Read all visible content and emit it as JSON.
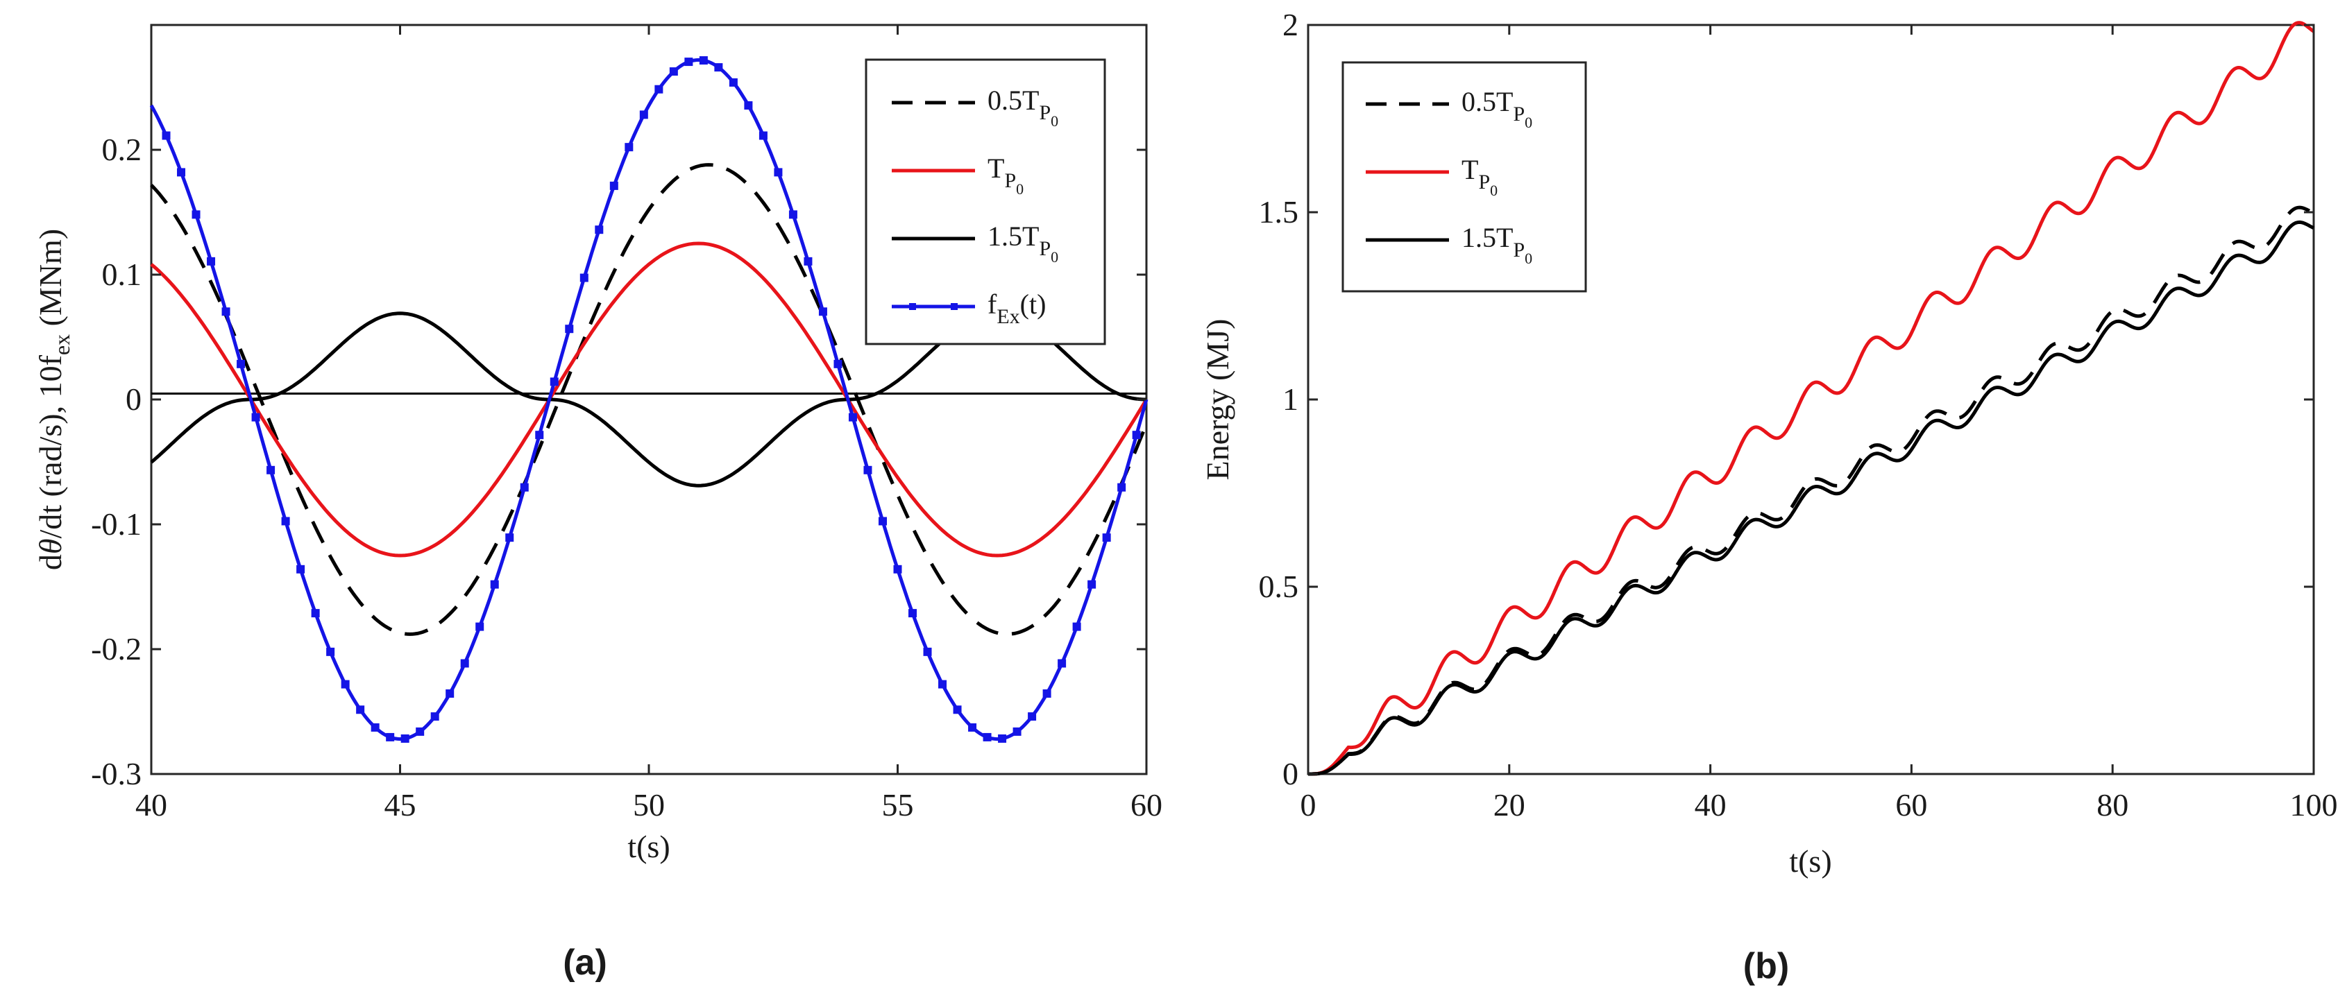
{
  "colors": {
    "red": "#e8141a",
    "black": "#000000",
    "blue": "#1414e6",
    "axis": "#262626"
  },
  "chart_data": [
    {
      "panel": "(a)",
      "type": "line",
      "title": "",
      "xlabel": "t(s)",
      "ylabel": {
        "prefix": "d",
        "theta": "θ",
        "rest": "/dt (rad/s), 10f",
        "sub": "ex",
        "unit": " (MNm)"
      },
      "xlim": [
        40,
        60
      ],
      "ylim": [
        -0.3,
        0.3
      ],
      "xticks": [
        40,
        45,
        50,
        55,
        60
      ],
      "xtick_labels": [
        "40",
        "45",
        "50",
        "55",
        "60"
      ],
      "yticks": [
        -0.3,
        -0.2,
        -0.1,
        0,
        0.1,
        0.2
      ],
      "ytick_labels": [
        "-0.3",
        "-0.2",
        "-0.1",
        "0",
        "0.1",
        "0.2"
      ],
      "grid": false,
      "legend_position": "top-right",
      "zero_line": true,
      "series": [
        {
          "name": "0.5T_P0",
          "legend": {
            "pre": "0.5T",
            "sub": "P",
            "subsub": "0",
            "post": ""
          },
          "style": "dashed",
          "color": "#000000",
          "amplitude": 0.188,
          "period": 12,
          "phase_zero": 42.2,
          "shape": "sine"
        },
        {
          "name": "T_P0",
          "legend": {
            "pre": "T",
            "sub": "P",
            "subsub": "0",
            "post": ""
          },
          "style": "solid",
          "color": "#e8141a",
          "amplitude": 0.125,
          "period": 12,
          "phase_zero": 42.0,
          "shape": "sine"
        },
        {
          "name": "1.5T_P0",
          "legend": {
            "pre": "1.5T",
            "sub": "P",
            "subsub": "0",
            "post": ""
          },
          "style": "solid",
          "color": "#000000",
          "amplitude": 0.069,
          "period": 12,
          "phase_zero": 42.0,
          "shape": "flat"
        },
        {
          "name": "f_Ex(t)",
          "legend": {
            "pre": "f",
            "sub": "Ex",
            "subsub": "",
            "post": "(t)"
          },
          "style": "solid-markers",
          "color": "#1414e6",
          "amplitude": 0.272,
          "period": 12,
          "phase_zero": 48.0,
          "shape": "sine",
          "marker_step": 0.3
        }
      ]
    },
    {
      "panel": "(b)",
      "type": "line",
      "title": "",
      "xlabel": "t(s)",
      "ylabel": "Energy (MJ)",
      "xlim": [
        0,
        100
      ],
      "ylim": [
        0,
        2
      ],
      "xticks": [
        0,
        20,
        40,
        60,
        80,
        100
      ],
      "xtick_labels": [
        "0",
        "20",
        "40",
        "60",
        "80",
        "100"
      ],
      "yticks": [
        0,
        0.5,
        1,
        1.5,
        2
      ],
      "ytick_labels": [
        "0",
        "0.5",
        "1",
        "1.5",
        "2"
      ],
      "grid": false,
      "legend_position": "top-left",
      "series": [
        {
          "name": "0.5T_P0",
          "legend": {
            "pre": "0.5T",
            "sub": "P",
            "subsub": "0"
          },
          "style": "dashed",
          "color": "#000000",
          "end_value": 1.51,
          "ripple": 0.028,
          "period": 6
        },
        {
          "name": "T_P0",
          "legend": {
            "pre": "T",
            "sub": "P",
            "subsub": "0"
          },
          "style": "solid",
          "color": "#e8141a",
          "end_value": 2.0,
          "ripple": 0.04,
          "period": 6
        },
        {
          "name": "1.5T_P0",
          "legend": {
            "pre": "1.5T",
            "sub": "P",
            "subsub": "0"
          },
          "style": "solid",
          "color": "#000000",
          "end_value": 1.47,
          "ripple": 0.028,
          "period": 6
        }
      ]
    }
  ]
}
